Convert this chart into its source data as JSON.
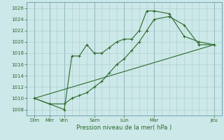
{
  "xlabel": "Pression niveau de la mer( hPa )",
  "bg_color": "#cce8e8",
  "grid_color": "#aacccc",
  "line_color": "#2d6a2d",
  "ylim": [
    1007,
    1027
  ],
  "yticks": [
    1008,
    1010,
    1012,
    1014,
    1016,
    1018,
    1020,
    1022,
    1024,
    1026
  ],
  "xlim": [
    0,
    13
  ],
  "xtick_major_labels": [
    "Dim",
    "Mer",
    "Ven",
    "Sam",
    "Lun",
    "Mar",
    "Jeu"
  ],
  "xtick_major_positions": [
    0.5,
    1.5,
    2.5,
    4.5,
    6.5,
    8.5,
    12.5
  ],
  "num_grid_cols": 13,
  "line1_x": [
    0.5,
    1.5,
    2.5,
    3.0,
    3.5,
    4.0,
    4.5,
    5.0,
    5.5,
    6.0,
    6.5,
    7.0,
    7.5,
    8.0,
    8.5,
    9.5,
    10.5,
    11.5,
    12.5
  ],
  "line1_y": [
    1010,
    1009,
    1008,
    1017.5,
    1017.5,
    1019.5,
    1018,
    1018,
    1019,
    1020,
    1020.5,
    1020.5,
    1022,
    1025.5,
    1025.5,
    1025,
    1021,
    1020,
    1019.5
  ],
  "line2_x": [
    0.5,
    1.5,
    2.5,
    3.0,
    3.5,
    4.0,
    4.5,
    5.0,
    5.5,
    6.0,
    6.5,
    7.0,
    7.5,
    8.0,
    8.5,
    9.5,
    10.5,
    11.5,
    12.5
  ],
  "line2_y": [
    1010,
    1009,
    1009,
    1010,
    1010.5,
    1011,
    1012,
    1013,
    1014.5,
    1016,
    1017,
    1018.5,
    1020,
    1022,
    1024,
    1024.5,
    1023,
    1019.5,
    1019.5
  ],
  "line3_x": [
    0.5,
    12.5
  ],
  "line3_y": [
    1010,
    1019.5
  ]
}
